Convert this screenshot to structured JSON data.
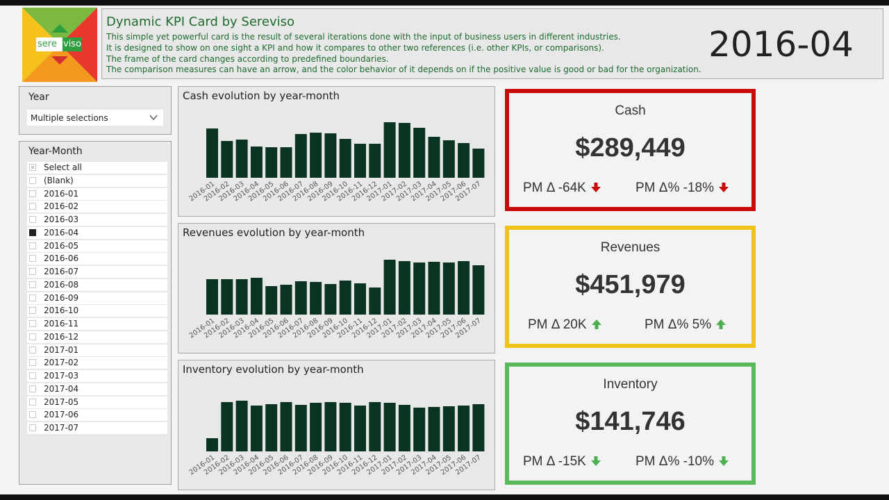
{
  "header": {
    "title": "Dynamic KPI Card by Sereviso",
    "lines": [
      "This simple yet powerful card is the result of several iterations done with the input of business users in different industries.",
      "It is designed to show on one sight a KPI and how it compares to other two  references (i.e. other KPIs, or comparisons).",
      "The frame of the card changes according to predefined boundaries.",
      "The comparison measures can have an arrow, and the color behavior of it depends on if the positive value is good or bad for the organization."
    ],
    "selected_period": "2016-04",
    "logo_text": "sereviso"
  },
  "year_slicer": {
    "title": "Year",
    "value": "Multiple selections"
  },
  "year_month_slicer": {
    "title": "Year-Month",
    "items": [
      {
        "label": "Select all",
        "state": "partial"
      },
      {
        "label": "(Blank)",
        "state": "unchecked"
      },
      {
        "label": "2016-01",
        "state": "unchecked"
      },
      {
        "label": "2016-02",
        "state": "unchecked"
      },
      {
        "label": "2016-03",
        "state": "unchecked"
      },
      {
        "label": "2016-04",
        "state": "checked"
      },
      {
        "label": "2016-05",
        "state": "unchecked"
      },
      {
        "label": "2016-06",
        "state": "unchecked"
      },
      {
        "label": "2016-07",
        "state": "unchecked"
      },
      {
        "label": "2016-08",
        "state": "unchecked"
      },
      {
        "label": "2016-09",
        "state": "unchecked"
      },
      {
        "label": "2016-10",
        "state": "unchecked"
      },
      {
        "label": "2016-11",
        "state": "unchecked"
      },
      {
        "label": "2016-12",
        "state": "unchecked"
      },
      {
        "label": "2017-01",
        "state": "unchecked"
      },
      {
        "label": "2017-02",
        "state": "unchecked"
      },
      {
        "label": "2017-03",
        "state": "unchecked"
      },
      {
        "label": "2017-04",
        "state": "unchecked"
      },
      {
        "label": "2017-05",
        "state": "unchecked"
      },
      {
        "label": "2017-06",
        "state": "unchecked"
      },
      {
        "label": "2017-07",
        "state": "unchecked"
      }
    ]
  },
  "chart_data": [
    {
      "type": "bar",
      "title": "Cash evolution by year-month",
      "categories": [
        "2016-01",
        "2016-02",
        "2016-03",
        "2016-04",
        "2016-05",
        "2016-06",
        "2016-07",
        "2016-08",
        "2016-09",
        "2016-10",
        "2016-11",
        "2016-12",
        "2017-01",
        "2017-02",
        "2017-03",
        "2017-04",
        "2017-05",
        "2017-06",
        "2017-07"
      ],
      "values": [
        71,
        53,
        55,
        45,
        44,
        44,
        63,
        65,
        64,
        56,
        49,
        49,
        80,
        79,
        72,
        59,
        54,
        50,
        42
      ],
      "ylim": [
        0,
        90
      ],
      "color": "#0b3321"
    },
    {
      "type": "bar",
      "title": "Revenues evolution by year-month",
      "categories": [
        "2016-01",
        "2016-02",
        "2016-03",
        "2016-04",
        "2016-05",
        "2016-06",
        "2016-07",
        "2016-08",
        "2016-09",
        "2016-10",
        "2016-11",
        "2016-12",
        "2017-01",
        "2017-02",
        "2017-03",
        "2017-04",
        "2017-05",
        "2017-06",
        "2017-07"
      ],
      "values": [
        51,
        51,
        51,
        53,
        41,
        43,
        48,
        47,
        44,
        49,
        45,
        39,
        79,
        77,
        75,
        76,
        75,
        77,
        71
      ],
      "ylim": [
        0,
        90
      ],
      "color": "#0b3321"
    },
    {
      "type": "bar",
      "title": "Inventory evolution by year-month",
      "categories": [
        "2016-01",
        "2016-02",
        "2016-03",
        "2016-04",
        "2016-05",
        "2016-06",
        "2016-07",
        "2016-08",
        "2016-09",
        "2016-10",
        "2016-11",
        "2016-12",
        "2017-01",
        "2017-02",
        "2017-03",
        "2017-04",
        "2017-05",
        "2017-06",
        "2017-07"
      ],
      "values": [
        19,
        71,
        73,
        66,
        68,
        71,
        67,
        70,
        71,
        70,
        66,
        71,
        70,
        67,
        63,
        64,
        65,
        66,
        68
      ],
      "ylim": [
        0,
        90
      ],
      "color": "#0b3321"
    }
  ],
  "kpis": [
    {
      "name": "Cash",
      "value": "$289,449",
      "frame_color": "#c80a0a",
      "delta_abs": "PM Δ -64K",
      "delta_abs_arrow": "arrow-down-icon",
      "delta_abs_color": "#c80a0a",
      "delta_pct": "PM Δ% -18%",
      "delta_pct_arrow": "arrow-down-icon",
      "delta_pct_color": "#c80a0a"
    },
    {
      "name": "Revenues",
      "value": "$451,979",
      "frame_color": "#eec41c",
      "delta_abs": "PM Δ 20K",
      "delta_abs_arrow": "arrow-up-icon",
      "delta_abs_color": "#4caf50",
      "delta_pct": "PM Δ% 5%",
      "delta_pct_arrow": "arrow-up-icon",
      "delta_pct_color": "#4caf50"
    },
    {
      "name": "Inventory",
      "value": "$141,746",
      "frame_color": "#5cb85c",
      "delta_abs": "PM Δ -15K",
      "delta_abs_arrow": "arrow-down-icon",
      "delta_abs_color": "#4caf50",
      "delta_pct": "PM Δ% -10%",
      "delta_pct_arrow": "arrow-down-icon",
      "delta_pct_color": "#4caf50"
    }
  ]
}
